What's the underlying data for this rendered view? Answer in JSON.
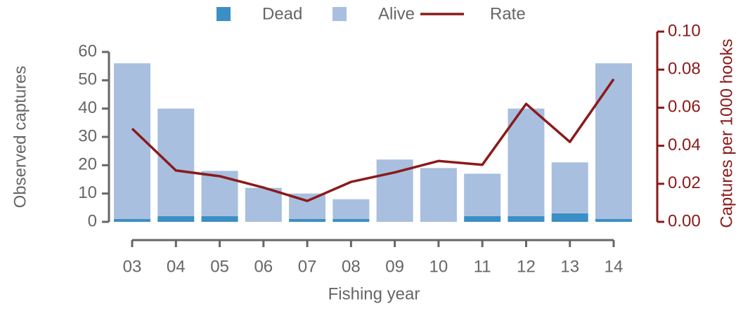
{
  "chart_data": {
    "type": "bar",
    "x_label": "Fishing year",
    "y_label": "Observed captures",
    "y2_label": "Captures per 1000 hooks",
    "categories": [
      "03",
      "04",
      "05",
      "06",
      "07",
      "08",
      "09",
      "10",
      "11",
      "12",
      "13",
      "14"
    ],
    "series": [
      {
        "name": "Dead",
        "color": "#3a8fc4",
        "values": [
          1,
          2,
          2,
          0,
          1,
          1,
          0,
          0,
          2,
          2,
          3,
          1
        ]
      },
      {
        "name": "Alive",
        "color": "#a8bfdf",
        "values": [
          55,
          38,
          16,
          12,
          9,
          7,
          22,
          19,
          15,
          38,
          18,
          55
        ]
      },
      {
        "name": "Rate",
        "color": "#8b1a1a",
        "type": "line",
        "axis": "y2",
        "values": [
          0.049,
          0.027,
          0.024,
          0.018,
          0.011,
          0.021,
          0.026,
          0.032,
          0.03,
          0.062,
          0.042,
          0.075
        ]
      }
    ],
    "ylim": [
      0,
      60
    ],
    "yticks": [
      0,
      10,
      20,
      30,
      40,
      50,
      60
    ],
    "y2lim": [
      0,
      0.1
    ],
    "y2ticks": [
      {
        "value": 0,
        "label": "0.00"
      },
      {
        "value": 0.02,
        "label": "0.02"
      },
      {
        "value": 0.04,
        "label": "0.04"
      },
      {
        "value": 0.06,
        "label": "0.06"
      },
      {
        "value": 0.08,
        "label": "0.08"
      },
      {
        "value": 0.1,
        "label": "0.10"
      }
    ],
    "legend": "top"
  }
}
